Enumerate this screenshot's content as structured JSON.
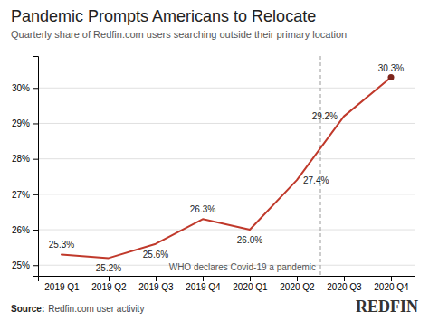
{
  "chart_data": {
    "type": "line",
    "title": "Pandemic Prompts Americans to Relocate",
    "subtitle": "Quarterly share of Redfin.com users searching outside their primary location",
    "source_label": "Source:",
    "source": "Redfin.com user activity",
    "logo": "REDFIN",
    "categories": [
      "2019 Q1",
      "2019 Q2",
      "2019 Q3",
      "2019 Q4",
      "2020 Q1",
      "2020 Q2",
      "2020 Q3",
      "2020 Q4"
    ],
    "values": [
      25.3,
      25.2,
      25.6,
      26.3,
      26.0,
      27.4,
      29.2,
      30.3
    ],
    "value_labels": [
      "25.3%",
      "25.2%",
      "25.6%",
      "26.3%",
      "26.0%",
      "27.4%",
      "29.2%",
      "30.3%"
    ],
    "data_labels": true,
    "color": "#c0392b",
    "ylim": [
      24.7,
      30.9
    ],
    "yticks": [
      {
        "value": 25,
        "label": "25%"
      },
      {
        "value": 26,
        "label": "26%"
      },
      {
        "value": 27,
        "label": "27%"
      },
      {
        "value": 28,
        "label": "28%"
      },
      {
        "value": 29,
        "label": "29%"
      },
      {
        "value": 30,
        "label": "30%"
      }
    ],
    "grid": true,
    "annotations": [
      {
        "text": "WHO declares Covid-19 a pandemic",
        "between": [
          "2020 Q2",
          "2020 Q3"
        ]
      }
    ]
  }
}
